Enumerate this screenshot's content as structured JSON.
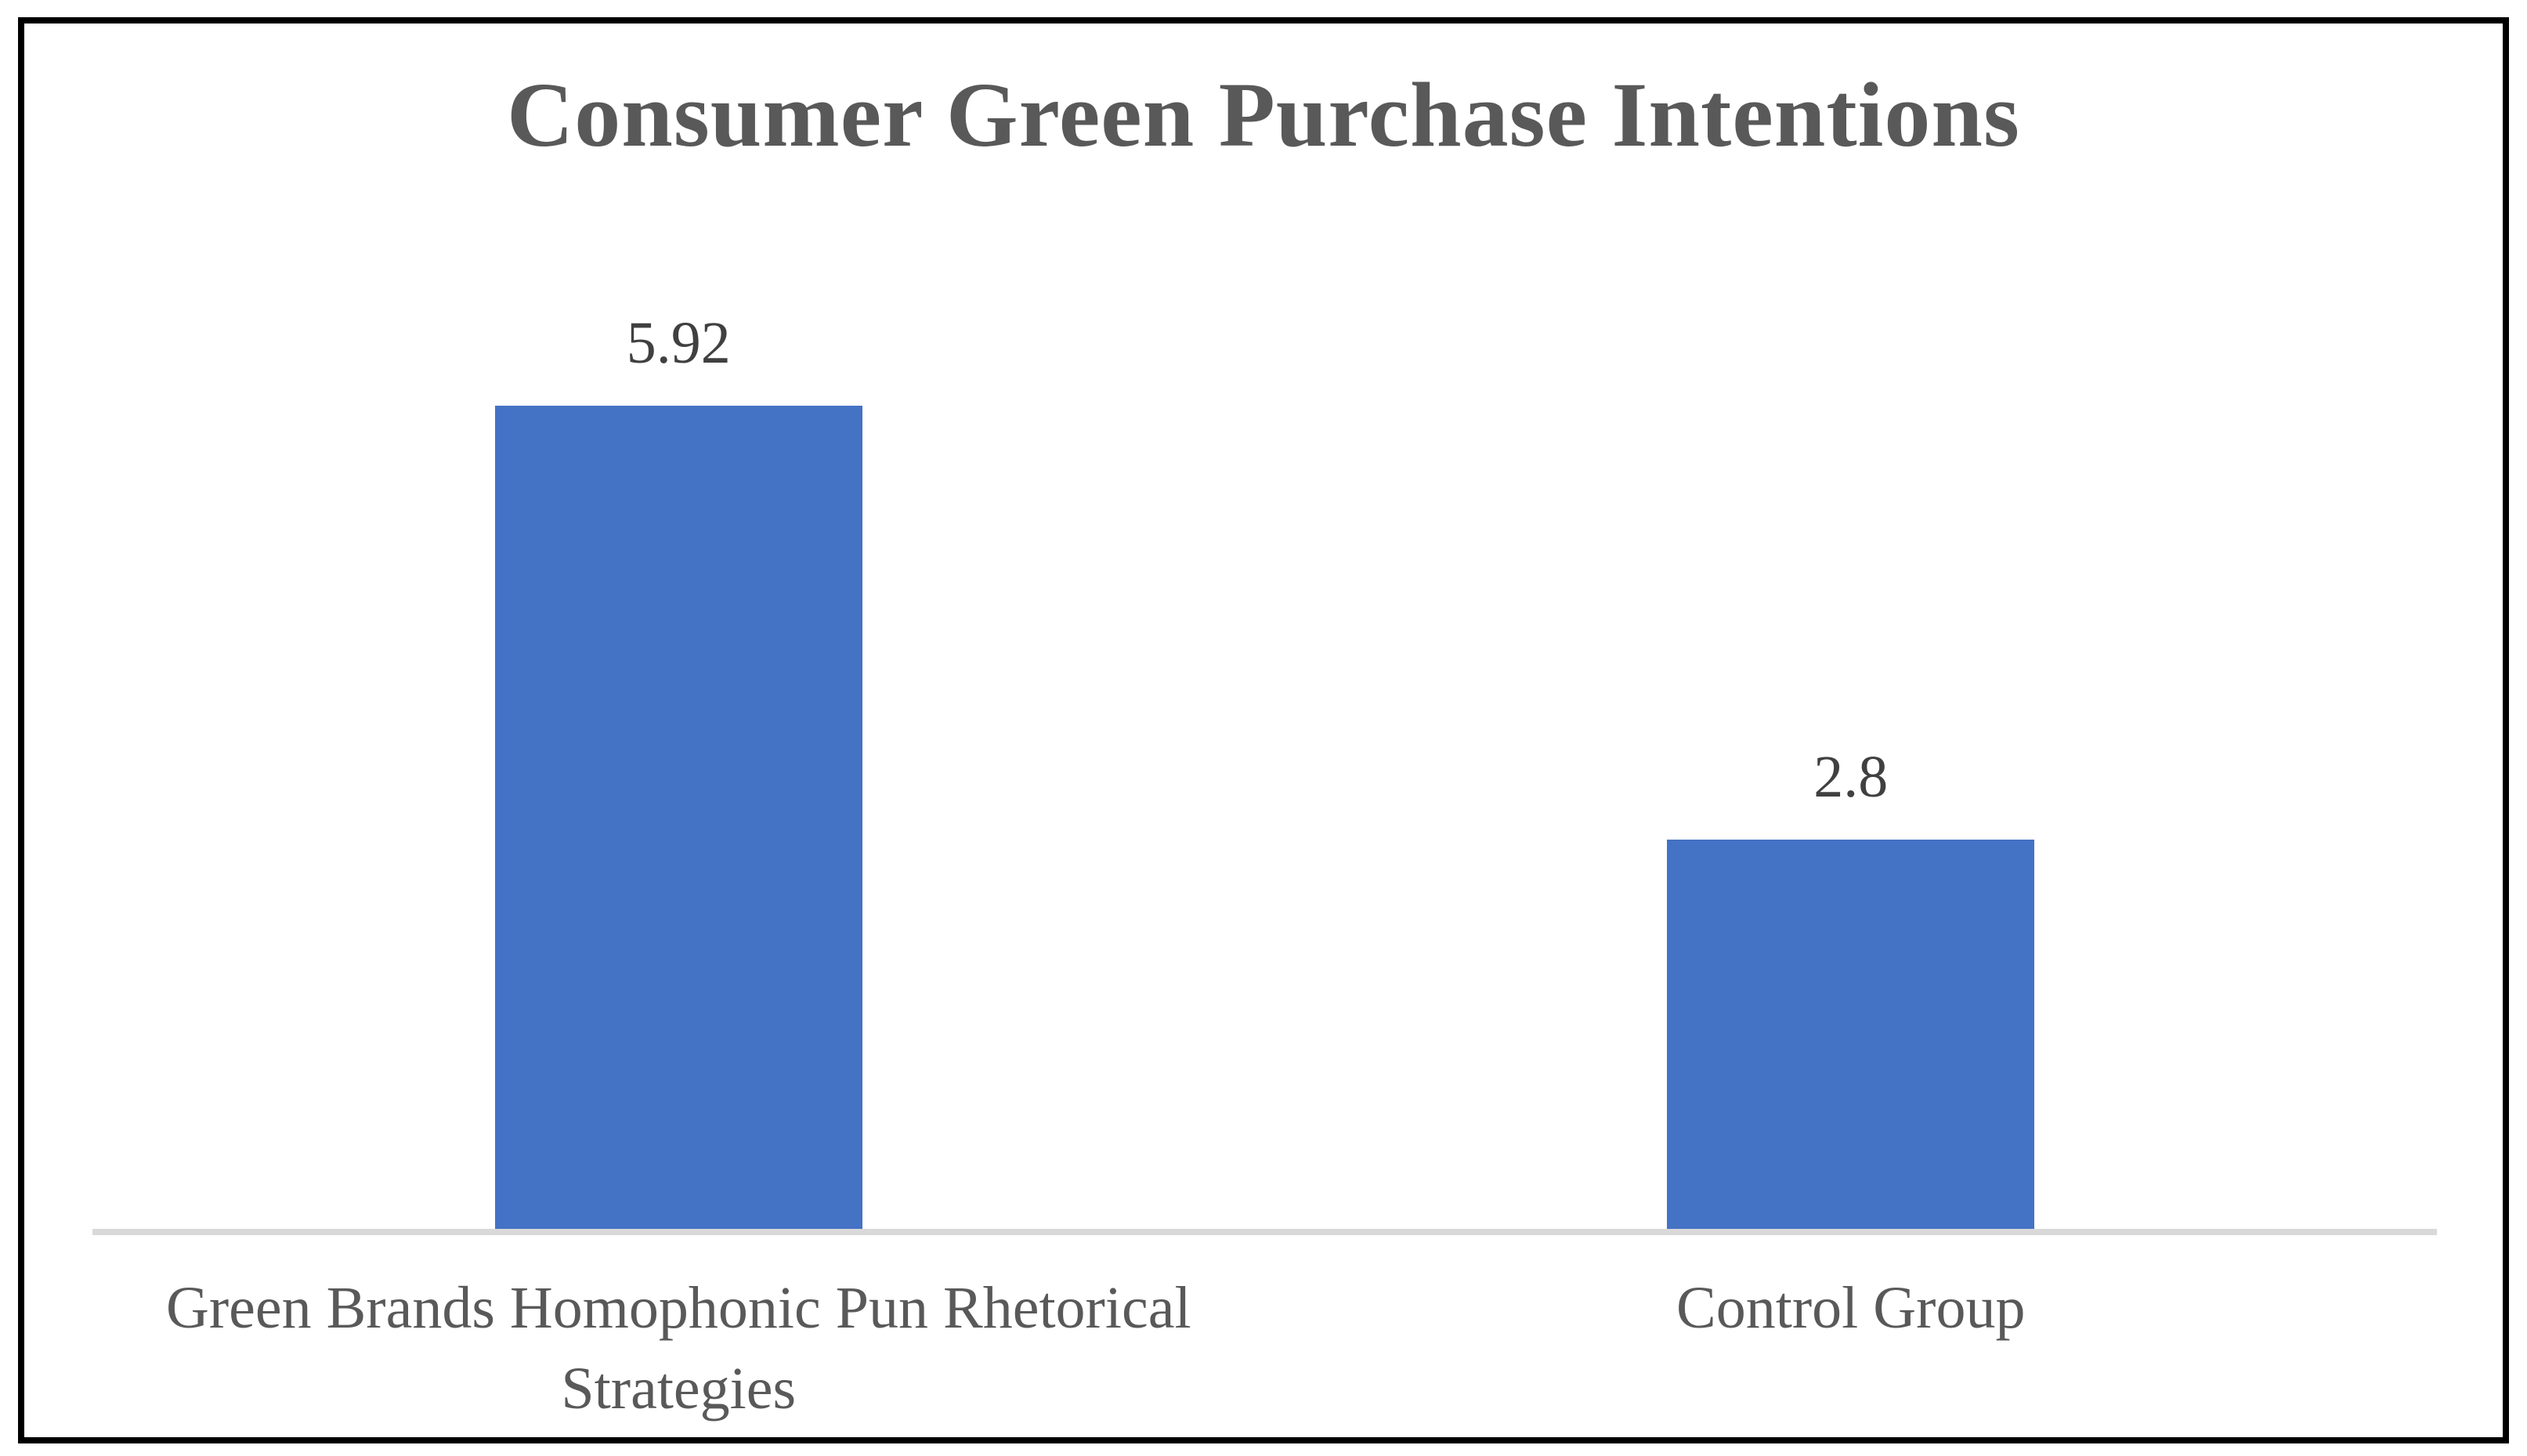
{
  "chart_data": {
    "type": "bar",
    "title": "Consumer Green Purchase Intentions",
    "categories": [
      "Green Brands Homophonic Pun Rhetorical Strategies",
      "Control Group"
    ],
    "values": [
      5.92,
      2.8
    ],
    "value_labels": [
      "5.92",
      "2.8"
    ],
    "xlabel": "",
    "ylabel": "",
    "ylim": [
      0,
      7
    ],
    "grid": false,
    "legend": false,
    "layout_hints": {
      "data_labels_position": "above-bar",
      "y_axis_ticks_visible": false,
      "baseline_visible": true
    },
    "colors": {
      "bar": "#4472C4",
      "title": "#595959",
      "data_label": "#404040",
      "category_label": "#595959",
      "axis_line": "#D9D9D9",
      "frame_border": "#000000"
    }
  }
}
